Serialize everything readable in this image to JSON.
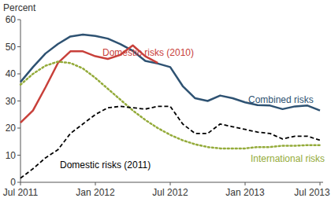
{
  "chart_data": {
    "type": "line",
    "y_label": "Percent",
    "categories": [
      "Jul 2011",
      null,
      null,
      null,
      null,
      null,
      "Jan 2012",
      null,
      null,
      null,
      null,
      null,
      "Jul 2012",
      null,
      null,
      null,
      null,
      null,
      "Jan 2013",
      null,
      null,
      null,
      null,
      null,
      "Jul 2013"
    ],
    "series": [
      {
        "name": "Combined risks",
        "color": "#2e5272",
        "line_style": "solid",
        "values": [
          37,
          42.5,
          47.5,
          51,
          53.8,
          54.5,
          54,
          53,
          51,
          48.5,
          44.8,
          43.8,
          42.5,
          35.5,
          31,
          30,
          32,
          31,
          29.5,
          28.5,
          28.3,
          27,
          28,
          28.3,
          26.5
        ]
      },
      {
        "name": "Domestic risks (2010)",
        "color": "#c8403a",
        "line_style": "solid",
        "values": [
          22,
          26.5,
          35,
          44,
          48.3,
          48.3,
          46.5,
          45.5,
          47,
          50.5,
          46.5,
          44,
          null,
          null,
          null,
          null,
          null,
          null,
          null,
          null,
          null,
          null,
          null,
          null,
          null
        ]
      },
      {
        "name": "International risks",
        "color": "#94ab3a",
        "line_style": "dotted",
        "values": [
          36,
          40,
          43,
          44.5,
          44,
          42,
          38.5,
          34.5,
          30.5,
          26.5,
          23,
          20,
          17.5,
          15.5,
          14,
          13,
          12.5,
          12.5,
          12.5,
          13,
          13,
          13.5,
          13.5,
          13.7,
          13.7
        ]
      },
      {
        "name": "Domestic risks (2011)",
        "color": "#000000",
        "line_style": "dashed",
        "values": [
          1.5,
          5,
          9,
          12,
          18,
          21.5,
          25,
          27.5,
          28,
          27.5,
          27,
          28,
          28,
          21.5,
          18,
          18,
          21.5,
          20.5,
          19.5,
          18.5,
          18,
          16,
          17,
          17,
          15.5
        ]
      }
    ],
    "ylim": [
      0,
      60
    ],
    "yticks": [
      0,
      10,
      20,
      30,
      40,
      50,
      60
    ],
    "grid": false
  }
}
